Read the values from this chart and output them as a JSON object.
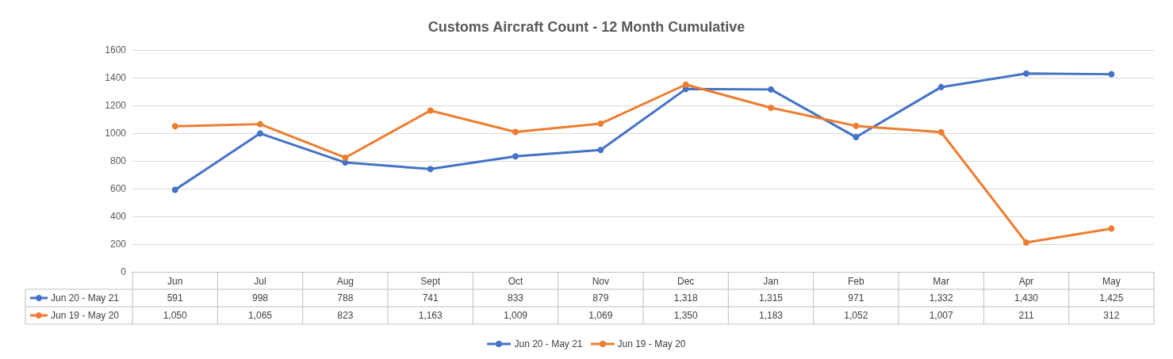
{
  "chart_data": {
    "type": "line",
    "title": "Customs Aircraft Count - 12 Month Cumulative",
    "categories": [
      "Jun",
      "Jul",
      "Aug",
      "Sept",
      "Oct",
      "Nov",
      "Dec",
      "Jan",
      "Feb",
      "Mar",
      "Apr",
      "May"
    ],
    "series": [
      {
        "name": "Jun 20 - May 21",
        "color": "#4472c4",
        "values": [
          591,
          998,
          788,
          741,
          833,
          879,
          1318,
          1315,
          971,
          1332,
          1430,
          1425
        ],
        "value_labels": [
          "591",
          "998",
          "788",
          "741",
          "833",
          "879",
          "1,318",
          "1,315",
          "971",
          "1,332",
          "1,430",
          "1,425"
        ]
      },
      {
        "name": "Jun 19 - May 20",
        "color": "#ed7d31",
        "values": [
          1050,
          1065,
          823,
          1163,
          1009,
          1069,
          1350,
          1183,
          1052,
          1007,
          211,
          312
        ],
        "value_labels": [
          "1,050",
          "1,065",
          "823",
          "1,163",
          "1,009",
          "1,069",
          "1,350",
          "1,183",
          "1,052",
          "1,007",
          "211",
          "312"
        ]
      }
    ],
    "ylim": [
      0,
      1600
    ],
    "yticks": [
      0,
      200,
      400,
      600,
      800,
      1000,
      1200,
      1400,
      1600
    ],
    "grid": "y",
    "legend": "bottom",
    "marker": "circle",
    "line_style": "solid"
  }
}
